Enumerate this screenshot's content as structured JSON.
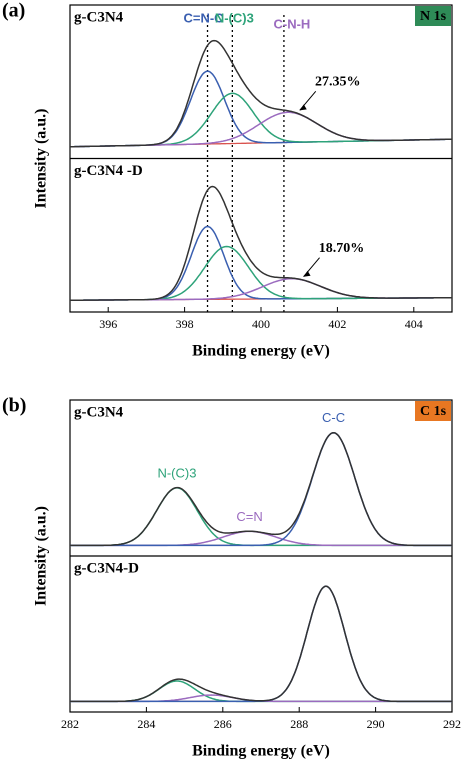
{
  "chart_data": [
    {
      "type": "line",
      "panel_label": "(a)",
      "badge": "N 1s",
      "badge_color": "#2e8b57",
      "xlabel": "Binding energy (eV)",
      "ylabel": "Intensity (a.u.)",
      "xlim": [
        395,
        405
      ],
      "xticks": [
        396,
        398,
        400,
        402,
        404
      ],
      "ylim": [
        0,
        100
      ],
      "dashed_guides": true,
      "peak_labels": [
        {
          "text": "C=N-C",
          "x": 398.6,
          "color": "#3a5fb0"
        },
        {
          "text": "N-(C)3",
          "x": 399.25,
          "color": "#2ea37a"
        },
        {
          "text": "C-N-H",
          "x": 400.6,
          "color": "#9b6bbf"
        }
      ],
      "subplots": [
        {
          "label": "g-C3N4",
          "annotation": "27.35%",
          "envelope_color": "#333333",
          "background": {
            "color": "#d9534f",
            "values": [
              3,
              9
            ]
          },
          "peaks": [
            {
              "name": "C=N-C",
              "color": "#3a5fb0",
              "center": 398.6,
              "height": 58,
              "fwhm": 1.05
            },
            {
              "name": "N-(C)3",
              "color": "#2ea37a",
              "center": 399.25,
              "height": 40,
              "fwhm": 1.3
            },
            {
              "name": "C-N-H",
              "color": "#9b6bbf",
              "center": 400.7,
              "height": 24,
              "fwhm": 1.8
            }
          ]
        },
        {
          "label": "g-C3N4 -D",
          "annotation": "18.70%",
          "envelope_color": "#333333",
          "background": {
            "color": "#d9534f",
            "values": [
              3,
              5
            ]
          },
          "peaks": [
            {
              "name": "C=N-C",
              "color": "#3a5fb0",
              "center": 398.6,
              "height": 58,
              "fwhm": 1.0
            },
            {
              "name": "N-(C)3",
              "color": "#2ea37a",
              "center": 399.1,
              "height": 42,
              "fwhm": 1.35
            },
            {
              "name": "C-N-H",
              "color": "#9b6bbf",
              "center": 400.8,
              "height": 16,
              "fwhm": 1.8
            }
          ]
        }
      ]
    },
    {
      "type": "line",
      "panel_label": "(b)",
      "badge": "C 1s",
      "badge_color": "#e87722",
      "xlabel": "Binding energy (eV)",
      "ylabel": "Intensity (a.u.)",
      "xlim": [
        282,
        292
      ],
      "xticks": [
        282,
        284,
        286,
        288,
        290,
        292
      ],
      "ylim": [
        0,
        100
      ],
      "dashed_guides": false,
      "peak_labels": [
        {
          "text": "N-(C)3",
          "x": 284.8,
          "color": "#2ea37a"
        },
        {
          "text": "C=N",
          "x": 286.7,
          "color": "#9b6bbf"
        },
        {
          "text": "C-C",
          "x": 288.9,
          "color": "#3a5fb0"
        }
      ],
      "subplots": [
        {
          "label": "g-C3N4",
          "envelope_color": "#333333",
          "background": {
            "color": "#d9534f",
            "values": [
              2,
              2
            ]
          },
          "peaks": [
            {
              "name": "N-(C)3",
              "color": "#2ea37a",
              "center": 284.8,
              "height": 45,
              "fwhm": 1.25
            },
            {
              "name": "C=N",
              "color": "#9b6bbf",
              "center": 286.7,
              "height": 11,
              "fwhm": 1.6
            },
            {
              "name": "C-C",
              "color": "#3a5fb0",
              "center": 288.9,
              "height": 88,
              "fwhm": 1.3
            }
          ]
        },
        {
          "label": "g-C3N4-D",
          "envelope_color": "#333333",
          "background": {
            "color": "#d9534f",
            "values": [
              2,
              2
            ]
          },
          "peaks": [
            {
              "name": "N-(C)3",
              "color": "#2ea37a",
              "center": 284.8,
              "height": 16,
              "fwhm": 1.1
            },
            {
              "name": "C=N",
              "color": "#9b6bbf",
              "center": 285.7,
              "height": 5,
              "fwhm": 1.3
            },
            {
              "name": "C-C",
              "color": "#3a5fb0",
              "center": 288.7,
              "height": 90,
              "fwhm": 1.15
            }
          ]
        }
      ]
    }
  ]
}
